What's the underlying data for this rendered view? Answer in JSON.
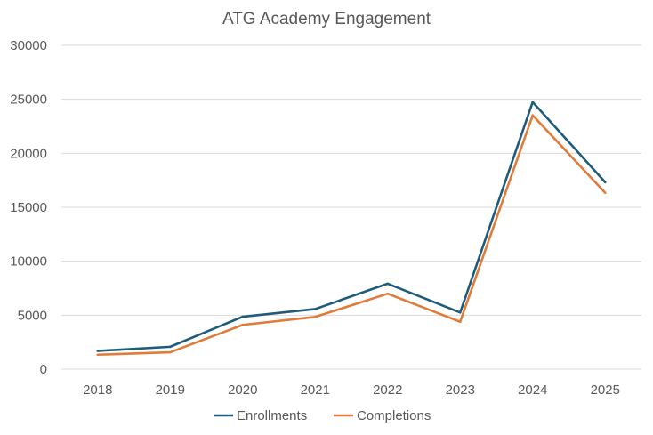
{
  "chart_data": {
    "type": "line",
    "title": "ATG Academy Engagement",
    "xlabel": "",
    "ylabel": "",
    "categories": [
      "2018",
      "2019",
      "2020",
      "2021",
      "2022",
      "2023",
      "2024",
      "2025"
    ],
    "ylim": [
      0,
      30000
    ],
    "yticks": [
      "0",
      "5000",
      "10000",
      "15000",
      "20000",
      "25000",
      "30000"
    ],
    "grid": true,
    "legend": "bottom",
    "series": [
      {
        "name": "Enrollments",
        "color": "#1f5c7a",
        "values": [
          1690,
          2070,
          4860,
          5570,
          7920,
          5250,
          24750,
          17320
        ]
      },
      {
        "name": "Completions",
        "color": "#e07b39",
        "values": [
          1340,
          1560,
          4100,
          4840,
          6990,
          4390,
          23520,
          16340
        ]
      }
    ]
  }
}
